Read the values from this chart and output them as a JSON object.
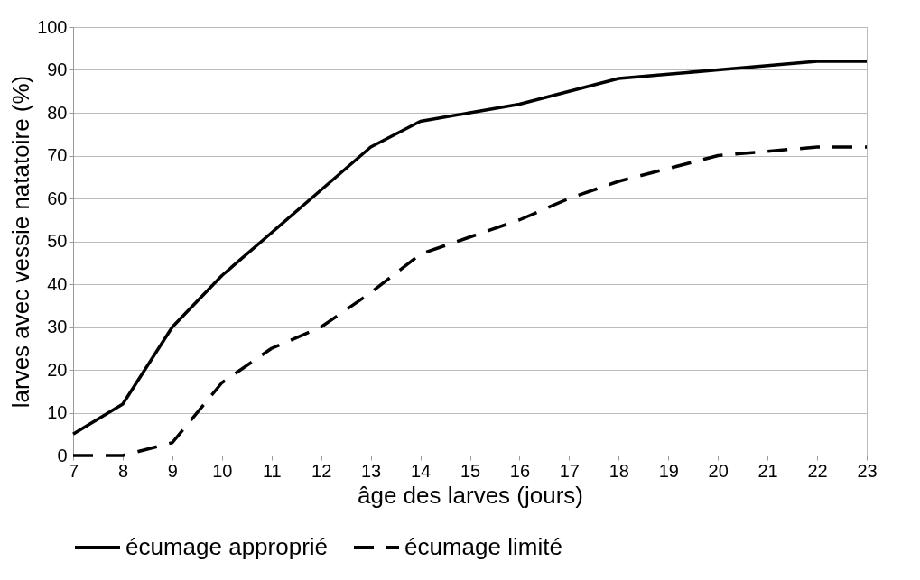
{
  "chart_data": {
    "type": "line",
    "xlabel": "âge des larves (jours)",
    "ylabel": "larves avec vessie natatoire (%)",
    "x": [
      7,
      8,
      9,
      10,
      11,
      12,
      13,
      14,
      15,
      16,
      17,
      18,
      19,
      20,
      21,
      22,
      23
    ],
    "series": [
      {
        "name": "écumage approprié",
        "color": "#000000",
        "line_style": "solid",
        "values": [
          5,
          12,
          30,
          42,
          52,
          62,
          72,
          78,
          80,
          82,
          85,
          88,
          89,
          90,
          91,
          92,
          92
        ]
      },
      {
        "name": "écumage limité",
        "color": "#000000",
        "line_style": "dashed",
        "values": [
          0,
          0,
          3,
          17,
          25,
          30,
          38,
          47,
          51,
          55,
          60,
          64,
          67,
          70,
          71,
          72,
          72
        ]
      }
    ],
    "xlim": [
      7,
      23
    ],
    "xticks": [
      7,
      8,
      9,
      10,
      11,
      12,
      13,
      14,
      15,
      16,
      17,
      18,
      19,
      20,
      21,
      22,
      23
    ],
    "ylim": [
      0,
      100
    ],
    "yticks": [
      0,
      10,
      20,
      30,
      40,
      50,
      60,
      70,
      80,
      90,
      100
    ],
    "grid": "y",
    "legend": "bottom",
    "marker": "none"
  }
}
